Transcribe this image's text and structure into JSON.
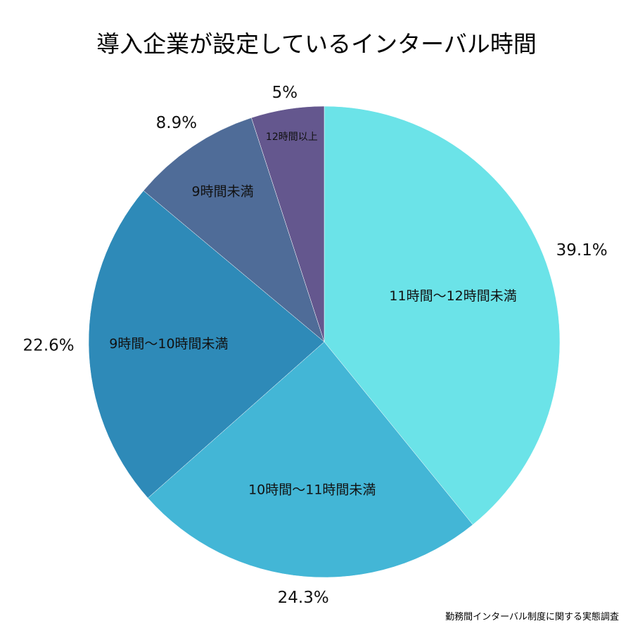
{
  "chart_data": {
    "type": "pie",
    "title": "導入企業が設定しているインターバル時間",
    "source": "勤務間インターバル制度に関する実態調査",
    "start": "top",
    "direction": "clockwise",
    "slices": [
      {
        "label": "11時間～12時間未満",
        "value": 39.1,
        "value_label": "39.1%",
        "color": "#6be3e8"
      },
      {
        "label": "10時間～11時間未満",
        "value": 24.3,
        "value_label": "24.3%",
        "color": "#43b6d6"
      },
      {
        "label": "9時間～10時間未満",
        "value": 22.6,
        "value_label": "22.6%",
        "color": "#2e8ab8"
      },
      {
        "label": "9時間未満",
        "value": 8.9,
        "value_label": "8.9%",
        "color": "#4f6c98"
      },
      {
        "label": "12時間以上",
        "value": 5,
        "value_label": "5%",
        "color": "#64578e"
      }
    ]
  }
}
